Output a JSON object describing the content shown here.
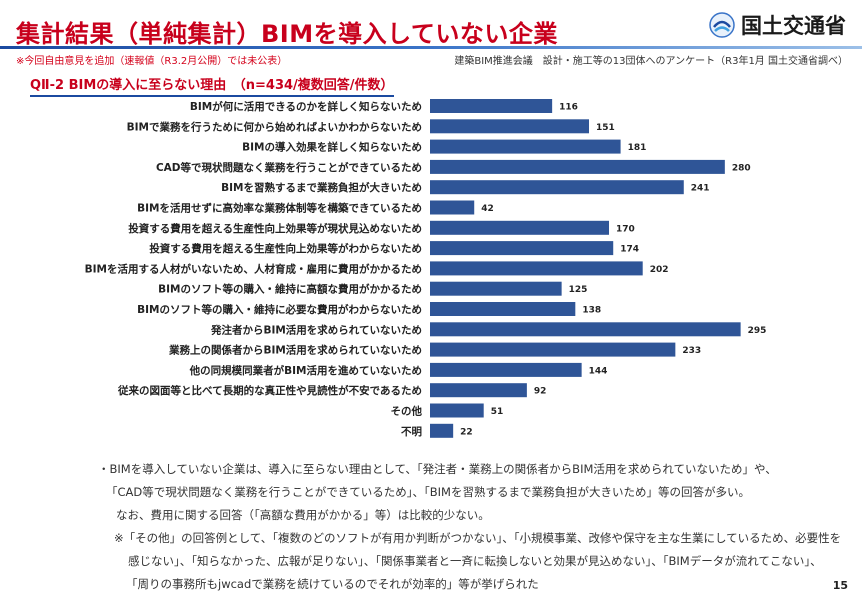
{
  "header": {
    "title": "集計結果（単純集計）BIMを導入していない企業",
    "logo_text": "国土交通省",
    "note_left": "※今回自由意見を追加（速報値（R3.2月公開）では未公表）",
    "note_right": "建築BIM推進会議　設計・施工等の13団体へのアンケート（R3年1月 国土交通省調べ）",
    "subtitle": "QⅡ-2  BIMの導入に至らない理由　（n=434/複数回答/件数）"
  },
  "chart_data": {
    "type": "bar",
    "orientation": "horizontal",
    "title": "BIMの導入に至らない理由",
    "categories": [
      "BIMが何に活用できるのかを詳しく知らないため",
      "BIMで業務を行うために何から始めればよいかわからないため",
      "BIMの導入効果を詳しく知らないため",
      "CAD等で現状問題なく業務を行うことができているため",
      "BIMを習熟するまで業務負担が大きいため",
      "BIMを活用せずに高効率な業務体制等を構築できているため",
      "投資する費用を超える生産性向上効果等が現状見込めないため",
      "投資する費用を超える生産性向上効果等がわからないため",
      "BIMを活用する人材がいないため、人材育成・雇用に費用がかかるため",
      "BIMのソフト等の購入・維持に高額な費用がかかるため",
      "BIMのソフト等の購入・維持に必要な費用がわからないため",
      "発注者からBIM活用を求められていないため",
      "業務上の関係者からBIM活用を求められていないため",
      "他の同規模同業者がBIM活用を進めていないため",
      "従来の図面等と比べて長期的な真正性や見読性が不安であるため",
      "その他",
      "不明"
    ],
    "values": [
      116,
      151,
      181,
      280,
      241,
      42,
      170,
      174,
      202,
      125,
      138,
      295,
      233,
      144,
      92,
      51,
      22
    ],
    "xlim": [
      0,
      320
    ],
    "color": "#2f5597"
  },
  "footer": {
    "line1": "・BIMを導入していない企業は、導入に至らない理由として、「発注者・業務上の関係者からBIM活用を求められていないため」や、",
    "line2": "「CAD等で現状問題なく業務を行うことができているため」、「BIMを習熟するまで業務負担が大きいため」等の回答が多い。",
    "line3": "なお、費用に関する回答（「高額な費用がかかる」等）は比較的少ない。",
    "line4": "※「その他」の回答例として、「複数のどのソフトが有用か判断がつかない」、「小規模事業、改修や保守を主な生業にしているため、必要性を",
    "line5": "感じない」、「知らなかった、広報が足りない」、「関係事業者と一斉に転換しないと効果が見込めない」、「BIMデータが流れてこない」、",
    "line6": "「周りの事務所もjwcadで業務を続けているのでそれが効率的」等が挙げられた",
    "page_number": "15"
  }
}
